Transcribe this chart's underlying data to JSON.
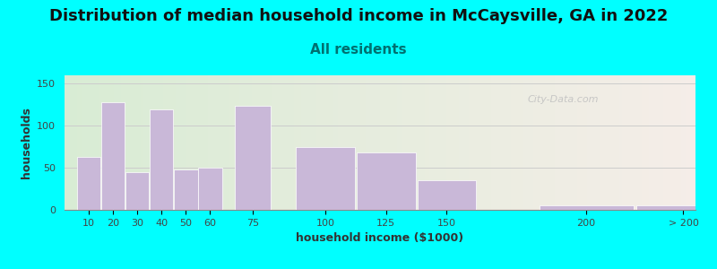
{
  "title": "Distribution of median household income in McCaysville, GA in 2022",
  "subtitle": "All residents",
  "xlabel": "household income ($1000)",
  "ylabel": "households",
  "bar_positions": [
    10,
    20,
    30,
    40,
    50,
    60,
    75,
    100,
    125,
    150,
    200,
    240
  ],
  "bar_widths": [
    10,
    10,
    10,
    10,
    10,
    10,
    15,
    25,
    25,
    25,
    40,
    40
  ],
  "bar_values": [
    63,
    128,
    45,
    120,
    48,
    50,
    124,
    75,
    68,
    35,
    5,
    5
  ],
  "bar_color": "#c9b8d8",
  "ylim": [
    0,
    160
  ],
  "yticks": [
    0,
    50,
    100,
    150
  ],
  "xlim": [
    5,
    265
  ],
  "background_color": "#00ffff",
  "plot_bg_left": "#d8ecd4",
  "plot_bg_right": "#f5ede8",
  "title_fontsize": 13,
  "subtitle_fontsize": 11,
  "subtitle_color": "#007070",
  "axis_label_fontsize": 9,
  "tick_fontsize": 8,
  "watermark_text": "City-Data.com",
  "xtick_labels": [
    "10",
    "20",
    "30",
    "40",
    "50",
    "60",
    "75",
    "100",
    "125",
    "150",
    "200",
    "> 200"
  ],
  "figsize": [
    8.0,
    3.0
  ],
  "dpi": 100
}
